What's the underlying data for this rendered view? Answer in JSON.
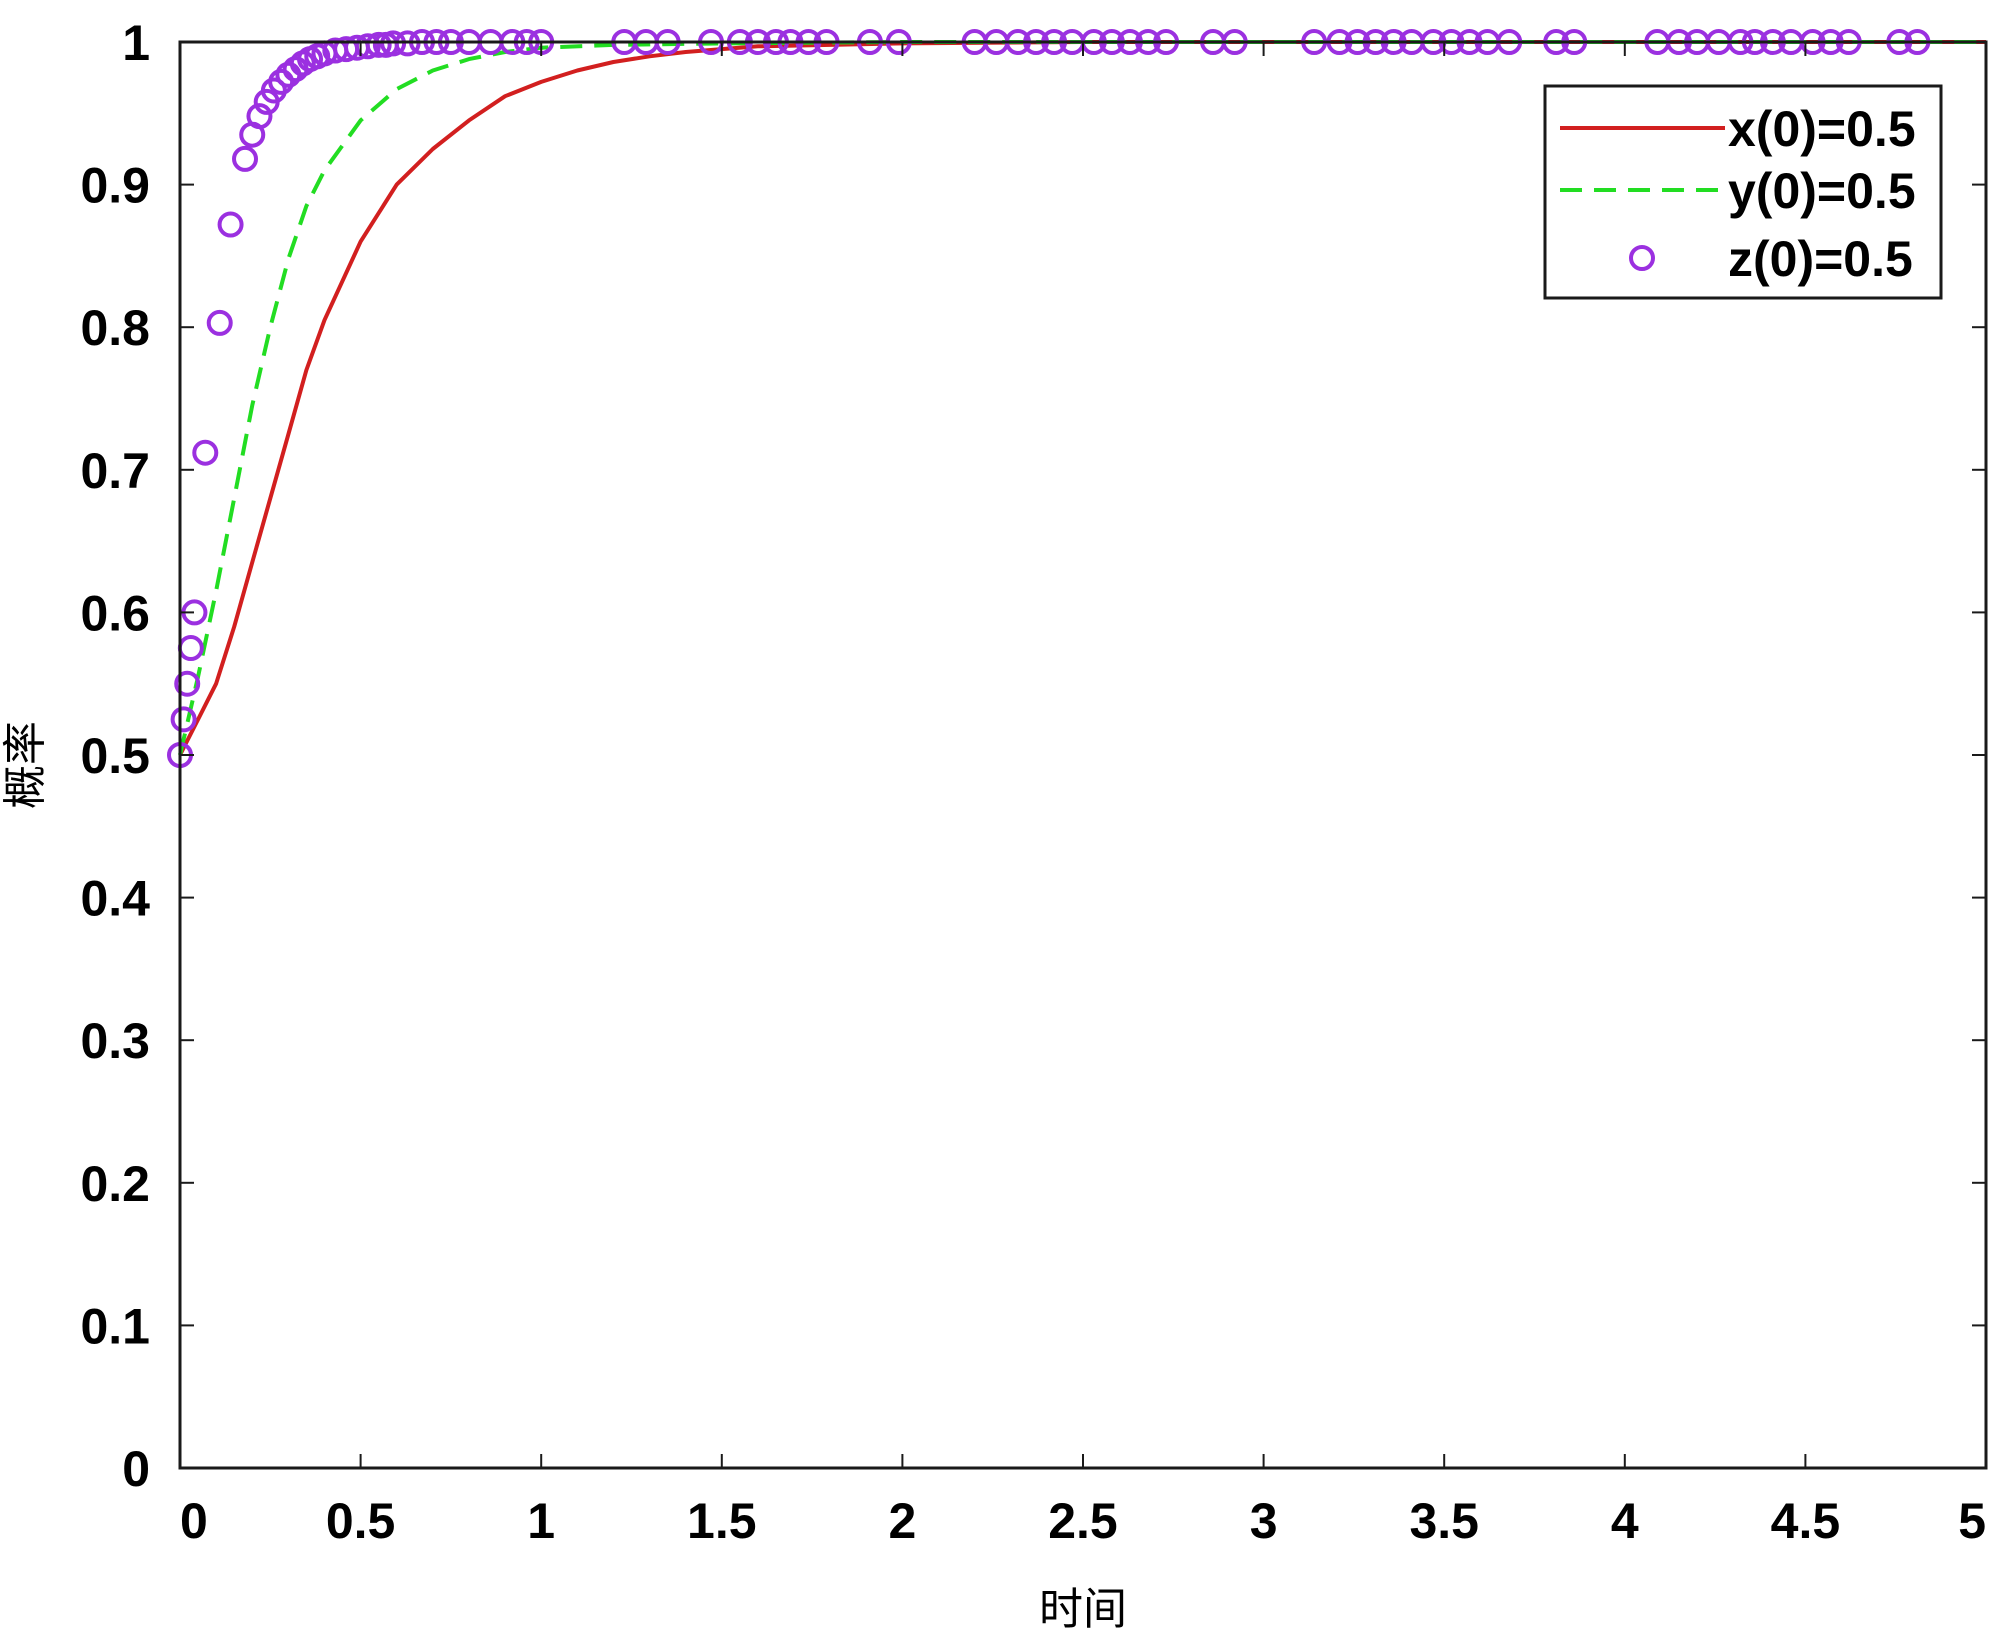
{
  "chart_data": {
    "type": "line",
    "xlabel": "时间",
    "ylabel": "概率",
    "xlim": [
      0,
      5
    ],
    "ylim": [
      0,
      1
    ],
    "xticks": [
      0,
      0.5,
      1,
      1.5,
      2,
      2.5,
      3,
      3.5,
      4,
      4.5,
      5
    ],
    "xtick_labels": [
      "0",
      "0.5",
      "1",
      "1.5",
      "2",
      "2.5",
      "3",
      "3.5",
      "4",
      "4.5",
      "5"
    ],
    "yticks": [
      0,
      0.1,
      0.2,
      0.3,
      0.4,
      0.5,
      0.6,
      0.7,
      0.8,
      0.9,
      1
    ],
    "ytick_labels": [
      "0",
      "0.1",
      "0.2",
      "0.3",
      "0.4",
      "0.5",
      "0.6",
      "0.7",
      "0.8",
      "0.9",
      "1"
    ],
    "grid": false,
    "legend_position": "top-right",
    "series": [
      {
        "name": "x(0)=0.5",
        "style": "solid-line",
        "color": "#d21f1f",
        "x": [
          0,
          0.05,
          0.1,
          0.15,
          0.2,
          0.25,
          0.3,
          0.35,
          0.4,
          0.5,
          0.6,
          0.7,
          0.8,
          0.9,
          1.0,
          1.1,
          1.2,
          1.3,
          1.4,
          1.5,
          1.6,
          1.8,
          2.0,
          2.5,
          3.0,
          4.0,
          5.0
        ],
        "y": [
          0.5,
          0.525,
          0.55,
          0.59,
          0.635,
          0.68,
          0.725,
          0.77,
          0.805,
          0.86,
          0.9,
          0.925,
          0.945,
          0.962,
          0.972,
          0.98,
          0.986,
          0.99,
          0.993,
          0.995,
          0.997,
          0.998,
          0.999,
          1.0,
          1.0,
          1.0,
          1.0
        ]
      },
      {
        "name": "y(0)=0.5",
        "style": "dashed-line",
        "color": "#22dd22",
        "x": [
          0,
          0.05,
          0.1,
          0.15,
          0.2,
          0.25,
          0.3,
          0.35,
          0.4,
          0.5,
          0.6,
          0.7,
          0.8,
          0.9,
          1.0,
          1.2,
          1.5,
          2.0,
          3.0,
          4.0,
          5.0
        ],
        "y": [
          0.5,
          0.555,
          0.615,
          0.68,
          0.745,
          0.8,
          0.848,
          0.885,
          0.91,
          0.945,
          0.967,
          0.98,
          0.988,
          0.993,
          0.996,
          0.998,
          0.999,
          1.0,
          1.0,
          1.0,
          1.0
        ]
      },
      {
        "name": "z(0)=0.5",
        "style": "circle-markers",
        "color": "#9b30e0",
        "x": [
          0,
          0.01,
          0.02,
          0.03,
          0.04,
          0.07,
          0.11,
          0.14,
          0.18,
          0.2,
          0.22,
          0.24,
          0.26,
          0.28,
          0.3,
          0.32,
          0.34,
          0.36,
          0.38,
          0.4,
          0.43,
          0.46,
          0.49,
          0.52,
          0.55,
          0.57,
          0.59,
          0.63,
          0.67,
          0.71,
          0.75,
          0.8,
          0.86,
          0.92,
          0.96,
          1.0,
          1.23,
          1.29,
          1.35,
          1.47,
          1.55,
          1.6,
          1.65,
          1.69,
          1.74,
          1.79,
          1.91,
          1.99,
          2.2,
          2.26,
          2.32,
          2.37,
          2.42,
          2.47,
          2.53,
          2.58,
          2.63,
          2.68,
          2.73,
          2.86,
          2.92,
          3.14,
          3.21,
          3.26,
          3.31,
          3.36,
          3.41,
          3.47,
          3.52,
          3.57,
          3.62,
          3.68,
          3.81,
          3.86,
          4.09,
          4.15,
          4.2,
          4.26,
          4.32,
          4.36,
          4.41,
          4.46,
          4.52,
          4.57,
          4.62,
          4.76,
          4.81
        ],
        "y": [
          0.5,
          0.525,
          0.55,
          0.575,
          0.6,
          0.712,
          0.803,
          0.872,
          0.918,
          0.935,
          0.948,
          0.958,
          0.966,
          0.972,
          0.977,
          0.981,
          0.985,
          0.988,
          0.99,
          0.992,
          0.994,
          0.995,
          0.996,
          0.997,
          0.998,
          0.998,
          0.999,
          0.999,
          1.0,
          1.0,
          1.0,
          1.0,
          1.0,
          1.0,
          1.0,
          1.0,
          1.0,
          1.0,
          1.0,
          1.0,
          1.0,
          1.0,
          1.0,
          1.0,
          1.0,
          1.0,
          1.0,
          1.0,
          1.0,
          1.0,
          1.0,
          1.0,
          1.0,
          1.0,
          1.0,
          1.0,
          1.0,
          1.0,
          1.0,
          1.0,
          1.0,
          1.0,
          1.0,
          1.0,
          1.0,
          1.0,
          1.0,
          1.0,
          1.0,
          1.0,
          1.0,
          1.0,
          1.0,
          1.0,
          1.0,
          1.0,
          1.0,
          1.0,
          1.0,
          1.0,
          1.0,
          1.0,
          1.0,
          1.0,
          1.0,
          1.0,
          1.0
        ]
      }
    ]
  }
}
